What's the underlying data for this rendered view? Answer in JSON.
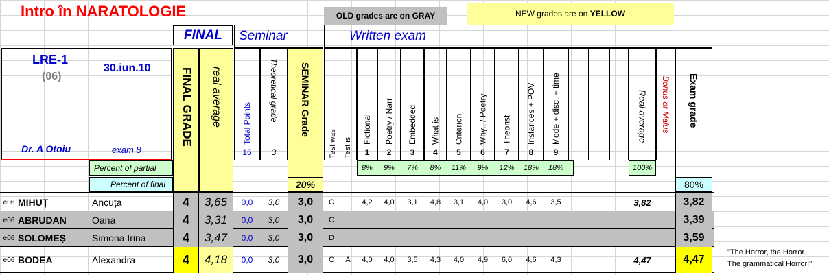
{
  "title": "Intro în NARATOLOGIE",
  "notes": {
    "old": "OLD grades are on ",
    "old_bold": "GRAY",
    "new": "NEW grades are on ",
    "new_bold": "YELLOW"
  },
  "headers": {
    "final": "FINAL",
    "seminar": "Seminar",
    "written": "Written exam"
  },
  "info": {
    "group": "LRE-1",
    "code": "(06)",
    "date": "30.iun.10",
    "teacher": "Dr. A Otoiu",
    "exam": "exam 8"
  },
  "cols": {
    "final_grade": "FINAL GRADE",
    "real_average": "real average",
    "total_points": "Total Points",
    "theoretical": "Theoretical grade",
    "seminar_grade": "SEMINAR Grade",
    "test_was": "Test was",
    "test_is": "Test is",
    "items": [
      "Fictional",
      "Poetry / Narr",
      "Embedded",
      "What is",
      "Criterion",
      "Why.. / Poetry",
      "Theorist",
      "Instances + POV",
      "Mode + disc. + time"
    ],
    "item_nums": [
      "1",
      "2",
      "3",
      "4",
      "5",
      "6",
      "7",
      "8",
      "9"
    ],
    "exam_real_average": "Real average",
    "bonus": "Bonus or Malus",
    "exam_grade": "Exam grade",
    "total_points_val": "16",
    "theoretical_val": "3"
  },
  "partial": {
    "label": "Percent of partial",
    "values": [
      "8%",
      "9%",
      "7%",
      "8%",
      "11%",
      "9%",
      "12%",
      "18%",
      "18%"
    ],
    "real": "100%"
  },
  "final_pct": {
    "label": "Percent of final",
    "seminar": "20%",
    "exam": "80%"
  },
  "students": [
    {
      "code": "e06",
      "last": "MIHUȚ",
      "first": "Ancuța",
      "final": "4",
      "avg": "3,65",
      "tp": "0,0",
      "th": "3,0",
      "sem": "3,0",
      "was": "C",
      "is": "",
      "items": [
        "4,2",
        "4,0",
        "3,1",
        "4,8",
        "3,1",
        "4,0",
        "3,0",
        "4,6",
        "3,5"
      ],
      "real": "3,82",
      "exam": "3,82"
    },
    {
      "code": "e06",
      "last": "ABRUDAN",
      "first": "Oana",
      "final": "4",
      "avg": "3,31",
      "tp": "0,0",
      "th": "3,0",
      "sem": "3,0",
      "was": "C",
      "is": "",
      "items": [
        "",
        "",
        "",
        "",
        "",
        "",
        "",
        "",
        ""
      ],
      "real": "",
      "exam": "3,39"
    },
    {
      "code": "e06",
      "last": "SOLOMEȘ",
      "first": "Simona Irina",
      "final": "4",
      "avg": "3,47",
      "tp": "0,0",
      "th": "3,0",
      "sem": "3,0",
      "was": "D",
      "is": "",
      "items": [
        "",
        "",
        "",
        "",
        "",
        "",
        "",
        "",
        ""
      ],
      "real": "",
      "exam": "3,59"
    },
    {
      "code": "e06",
      "last": "BODEA",
      "first": "Alexandra",
      "final": "4",
      "avg": "4,18",
      "tp": "0,0",
      "th": "3,0",
      "sem": "3,0",
      "was": "C",
      "is": "A",
      "items": [
        "4,0",
        "4,0",
        "3,5",
        "4,3",
        "4,0",
        "4,9",
        "6,0",
        "4,6",
        "4,3"
      ],
      "real": "4,47",
      "exam": "4,47"
    }
  ],
  "quote": {
    "line1": "\"The Horror, the Horror.",
    "line2": "The grammatical Horror!\""
  }
}
